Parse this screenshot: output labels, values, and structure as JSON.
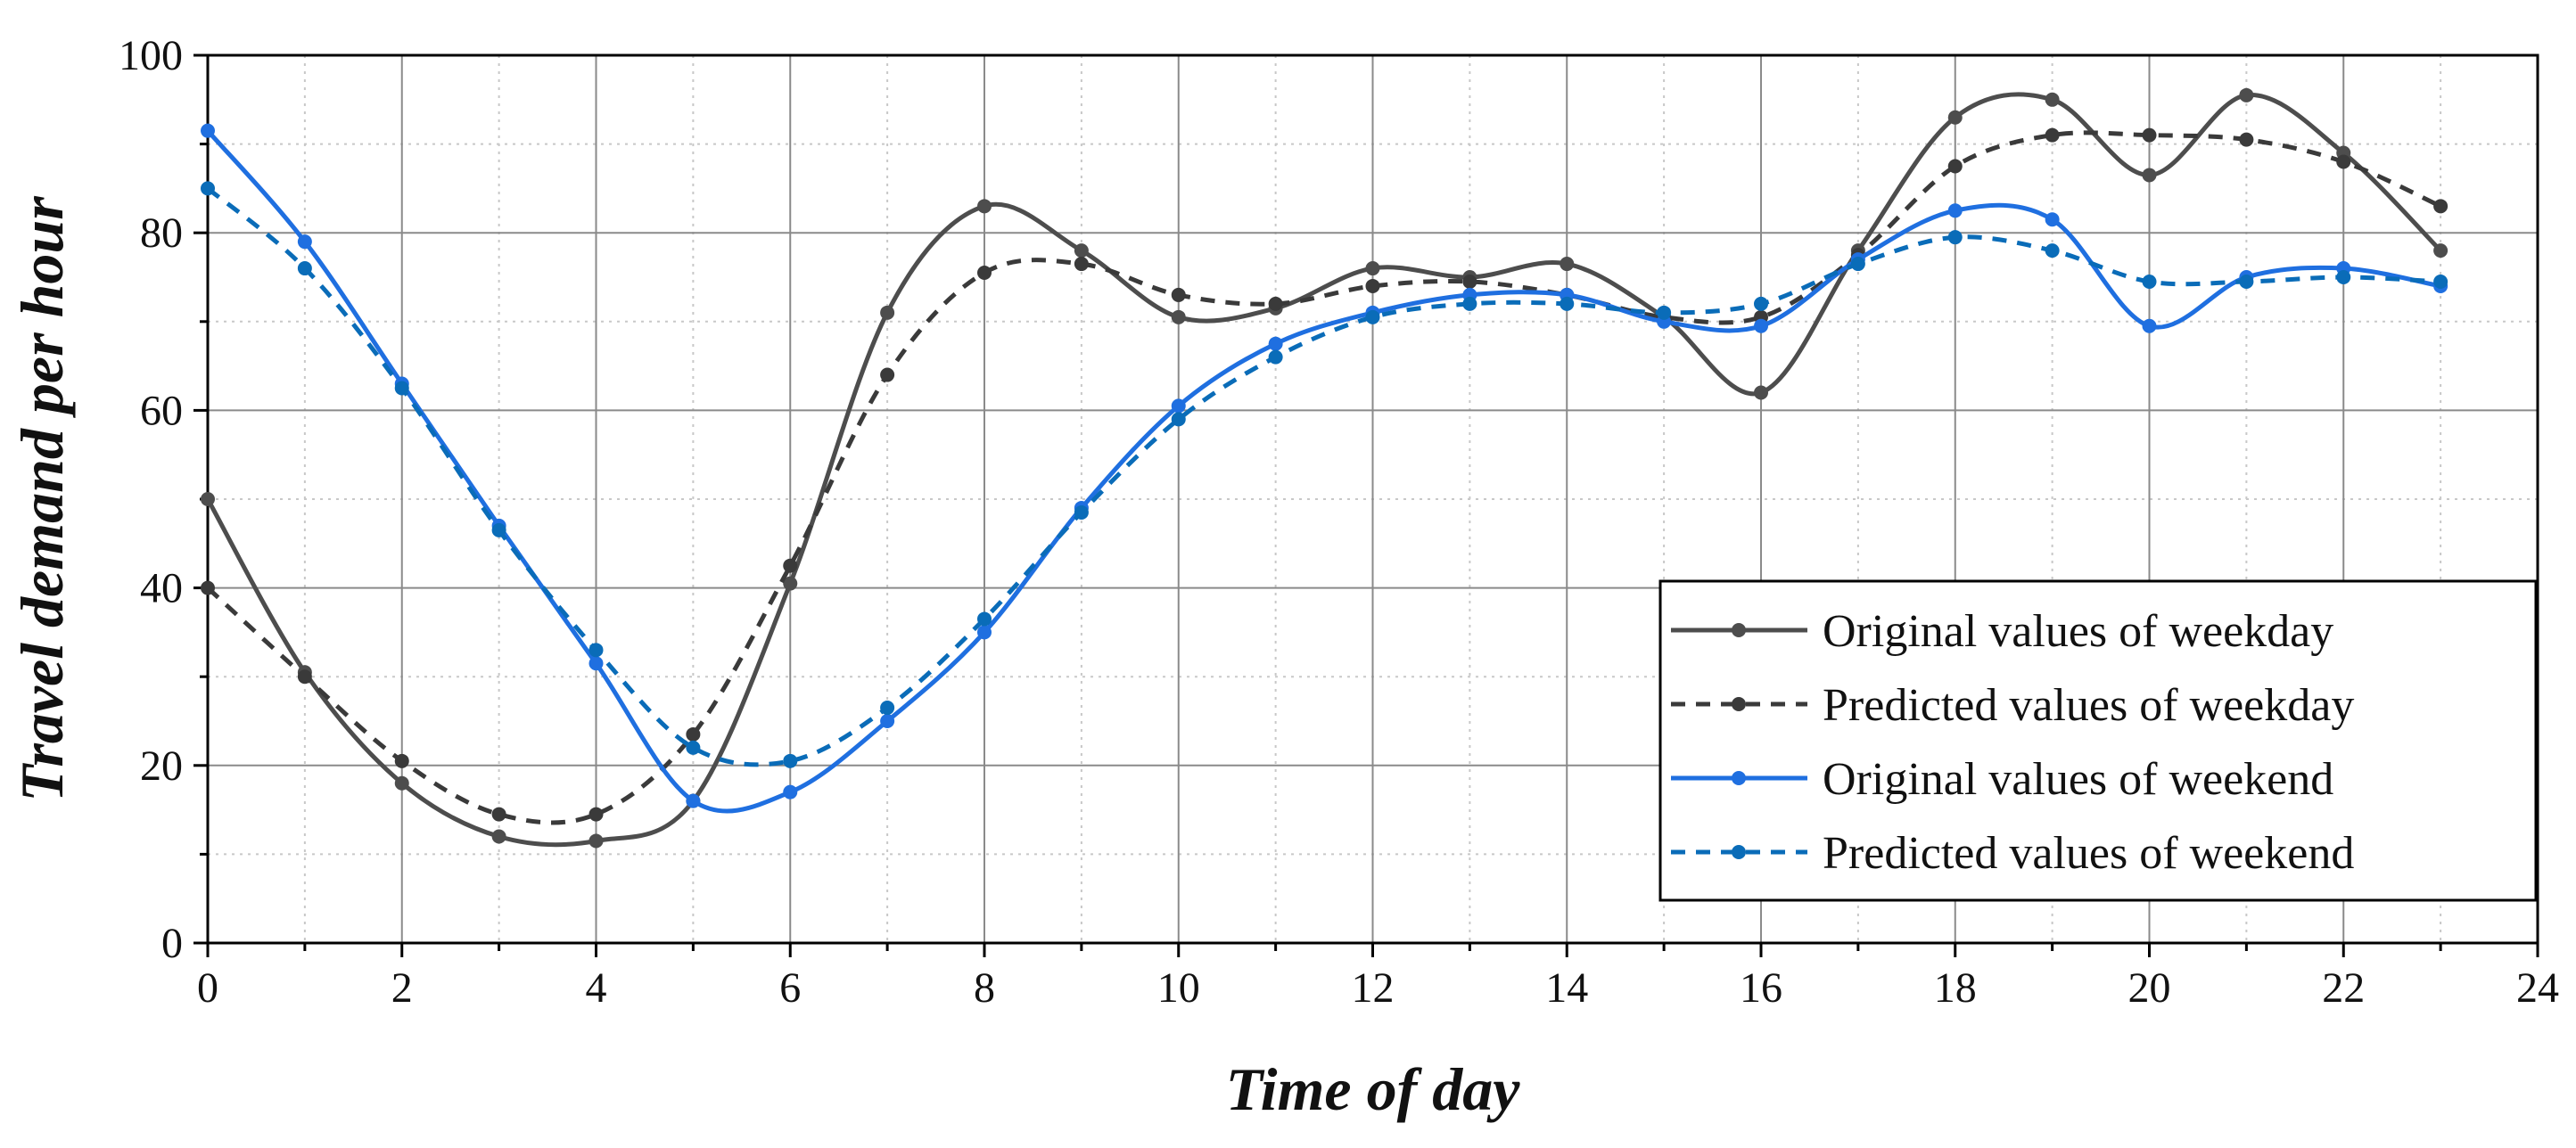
{
  "chart_data": {
    "type": "line",
    "title": "",
    "xlabel": "Time of day",
    "ylabel": "Travel demand per hour",
    "xlim": [
      0,
      24
    ],
    "ylim": [
      0,
      100
    ],
    "xticks": [
      0,
      2,
      4,
      6,
      8,
      10,
      12,
      14,
      16,
      18,
      20,
      22,
      24
    ],
    "yticks": [
      0,
      20,
      40,
      60,
      80,
      100
    ],
    "grid": true,
    "legend_position": "bottom-right",
    "x": [
      0,
      1,
      2,
      3,
      4,
      5,
      6,
      7,
      8,
      9,
      10,
      11,
      12,
      13,
      14,
      15,
      16,
      17,
      18,
      19,
      20,
      21,
      22,
      23
    ],
    "series": [
      {
        "name": "Original values of weekday",
        "color": "#4d4d4d",
        "style": "solid",
        "values": [
          50,
          30.5,
          18,
          12,
          11.5,
          16,
          40.5,
          71,
          83,
          78,
          70.5,
          71.5,
          76,
          75,
          76.5,
          70.5,
          62,
          78,
          93,
          95,
          86.5,
          95.5,
          89,
          78
        ]
      },
      {
        "name": "Predicted values of weekday",
        "color": "#3a3a3a",
        "style": "dashed",
        "values": [
          40,
          30,
          20.5,
          14.5,
          14.5,
          23.5,
          42.5,
          64,
          75.5,
          76.5,
          73,
          72,
          74,
          74.5,
          73,
          70.5,
          70.5,
          77.5,
          87.5,
          91,
          91,
          90.5,
          88,
          83
        ]
      },
      {
        "name": "Original values of weekend",
        "color": "#1f6fe0",
        "style": "solid",
        "values": [
          91.5,
          79,
          63,
          47,
          31.5,
          16,
          17,
          25,
          35,
          49,
          60.5,
          67.5,
          71,
          73,
          73,
          70,
          69.5,
          77,
          82.5,
          81.5,
          69.5,
          75,
          76,
          74
        ]
      },
      {
        "name": "Predicted values of weekend",
        "color": "#0a6cb8",
        "style": "dashed",
        "values": [
          85,
          76,
          62.5,
          46.5,
          33,
          22,
          20.5,
          26.5,
          36.5,
          48.5,
          59,
          66,
          70.5,
          72,
          72,
          71,
          72,
          76.5,
          79.5,
          78,
          74.5,
          74.5,
          75,
          74.5
        ]
      }
    ]
  }
}
